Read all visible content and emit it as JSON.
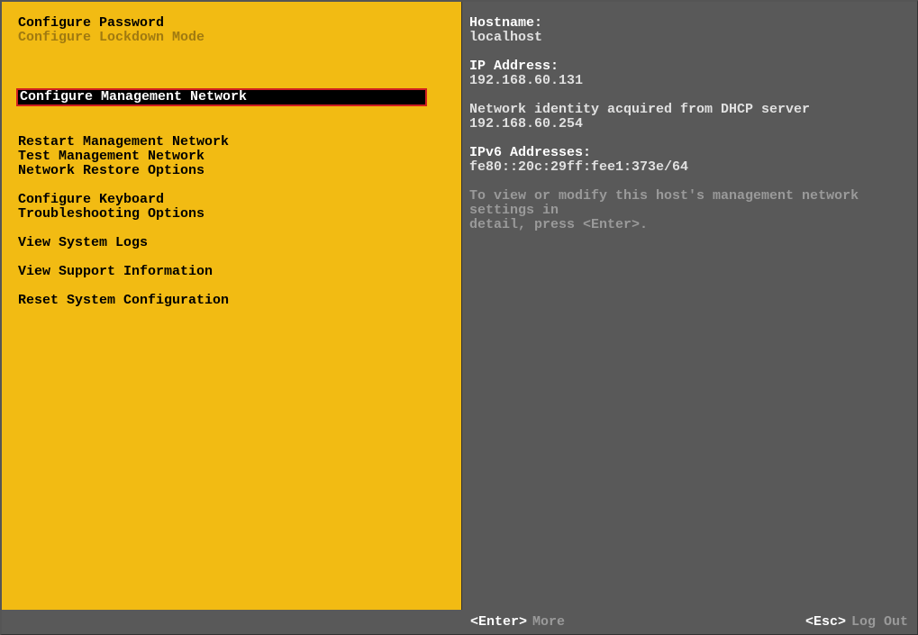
{
  "colors": {
    "left_bg": "#f2bb13",
    "right_bg": "#595959",
    "selected_bg": "#000000",
    "selected_fg": "#ffffff",
    "selected_border": "#d02020",
    "disabled_fg": "#a07a10",
    "hint_fg": "#9a9a9a"
  },
  "menu": {
    "group1": [
      {
        "label": "Configure Password",
        "disabled": false
      },
      {
        "label": "Configure Lockdown Mode",
        "disabled": true
      }
    ],
    "selected": {
      "label": "Configure Management Network"
    },
    "group2": [
      {
        "label": "Restart Management Network"
      },
      {
        "label": "Test Management Network"
      },
      {
        "label": "Network Restore Options"
      }
    ],
    "group3": [
      {
        "label": "Configure Keyboard"
      },
      {
        "label": "Troubleshooting Options"
      }
    ],
    "group4": [
      {
        "label": "View System Logs"
      }
    ],
    "group5": [
      {
        "label": "View Support Information"
      }
    ],
    "group6": [
      {
        "label": "Reset System Configuration"
      }
    ]
  },
  "detail": {
    "hostname_label": "Hostname:",
    "hostname_value": "localhost",
    "ip_label": "IP Address:",
    "ip_value": "192.168.60.131",
    "dhcp_line": "Network identity acquired from DHCP server 192.168.60.254",
    "ipv6_label": "IPv6 Addresses:",
    "ipv6_value": "fe80::20c:29ff:fee1:373e/64",
    "hint_line1": "To view or modify this host's management network settings in",
    "hint_line2": "detail, press <Enter>."
  },
  "footer": {
    "enter_key": "<Enter>",
    "enter_action": "More",
    "esc_key": "<Esc>",
    "esc_action": "Log Out"
  }
}
